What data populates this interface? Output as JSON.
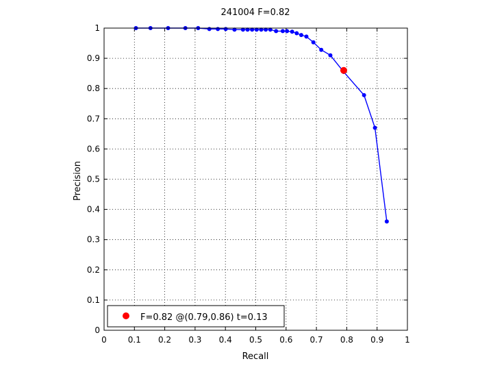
{
  "chart_data": {
    "type": "line",
    "title": "241004 F=0.82",
    "xlabel": "Recall",
    "ylabel": "Precision",
    "xlim": [
      0,
      1
    ],
    "ylim": [
      0,
      1
    ],
    "xticks": [
      0,
      0.1,
      0.2,
      0.3,
      0.4,
      0.5,
      0.6,
      0.7,
      0.8,
      0.9,
      1
    ],
    "yticks": [
      0,
      0.1,
      0.2,
      0.3,
      0.4,
      0.5,
      0.6,
      0.7,
      0.8,
      0.9,
      1
    ],
    "xtick_labels": [
      "0",
      "0.1",
      "0.2",
      "0.3",
      "0.4",
      "0.5",
      "0.6",
      "0.7",
      "0.8",
      "0.9",
      "1"
    ],
    "ytick_labels": [
      "0",
      "0.1",
      "0.2",
      "0.3",
      "0.4",
      "0.5",
      "0.6",
      "0.7",
      "0.8",
      "0.9",
      "1"
    ],
    "grid": true,
    "grid_style": "dotted",
    "legend_position": "bottom-left",
    "series": [
      {
        "color": "#0000ff",
        "marker": "dot",
        "points": [
          [
            0.105,
            1.0
          ],
          [
            0.153,
            1.0
          ],
          [
            0.211,
            1.0
          ],
          [
            0.268,
            1.0
          ],
          [
            0.31,
            1.0
          ],
          [
            0.347,
            0.997
          ],
          [
            0.375,
            0.997
          ],
          [
            0.401,
            0.997
          ],
          [
            0.43,
            0.995
          ],
          [
            0.458,
            0.995
          ],
          [
            0.473,
            0.995
          ],
          [
            0.488,
            0.995
          ],
          [
            0.503,
            0.995
          ],
          [
            0.518,
            0.995
          ],
          [
            0.533,
            0.995
          ],
          [
            0.548,
            0.995
          ],
          [
            0.567,
            0.99
          ],
          [
            0.589,
            0.99
          ],
          [
            0.603,
            0.99
          ],
          [
            0.62,
            0.988
          ],
          [
            0.635,
            0.983
          ],
          [
            0.65,
            0.977
          ],
          [
            0.667,
            0.972
          ],
          [
            0.69,
            0.953
          ],
          [
            0.716,
            0.928
          ],
          [
            0.746,
            0.91
          ],
          [
            0.79,
            0.855
          ],
          [
            0.857,
            0.778
          ],
          [
            0.893,
            0.67
          ],
          [
            0.932,
            0.36
          ]
        ]
      }
    ],
    "highlight": {
      "x": 0.79,
      "y": 0.86,
      "color": "#ff0000",
      "label": "F=0.82 @(0.79,0.86) t=0.13"
    }
  }
}
